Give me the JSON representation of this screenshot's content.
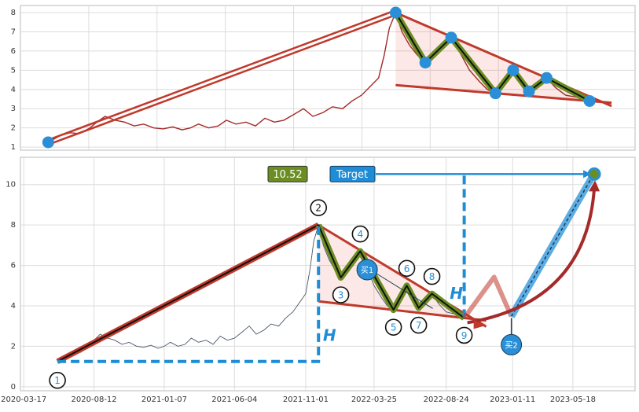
{
  "chart_data": [
    {
      "type": "line",
      "xlim": [
        "2020-04-13",
        "2022-12-12"
      ],
      "ylim": [
        0.84,
        8.37
      ],
      "yticks": [
        1,
        2,
        3,
        4,
        5,
        6,
        7,
        8
      ],
      "grid": true,
      "x": [
        "2020-05-27",
        "2020-06-15",
        "2020-07-01",
        "2020-07-15",
        "2020-08-01",
        "2020-08-12",
        "2020-08-25",
        "2020-09-10",
        "2020-09-25",
        "2020-10-10",
        "2020-10-25",
        "2020-11-10",
        "2020-11-25",
        "2020-12-10",
        "2020-12-25",
        "2021-01-07",
        "2021-01-20",
        "2021-02-05",
        "2021-02-20",
        "2021-03-05",
        "2021-03-20",
        "2021-04-05",
        "2021-04-20",
        "2021-05-05",
        "2021-05-20",
        "2021-06-04",
        "2021-06-20",
        "2021-07-05",
        "2021-07-20",
        "2021-08-05",
        "2021-08-20",
        "2021-09-05",
        "2021-09-20",
        "2021-10-05",
        "2021-10-20",
        "2021-11-01",
        "2021-11-10",
        "2021-11-18",
        "2021-11-28",
        "2021-12-08",
        "2021-12-20",
        "2022-01-01",
        "2022-01-14",
        "2022-01-28",
        "2022-02-10",
        "2022-02-24",
        "2022-03-10",
        "2022-03-25",
        "2022-04-10",
        "2022-04-22",
        "2022-05-05",
        "2022-05-20",
        "2022-06-02",
        "2022-06-15",
        "2022-06-27",
        "2022-07-12",
        "2022-07-25",
        "2022-08-08",
        "2022-08-24",
        "2022-09-10",
        "2022-10-01"
      ],
      "series": [
        {
          "color": "#a52a2a",
          "values": [
            1.25,
            1.6,
            1.75,
            1.7,
            2.0,
            2.3,
            2.6,
            2.4,
            2.3,
            2.1,
            2.2,
            2.0,
            1.95,
            2.05,
            1.9,
            2.0,
            2.2,
            2.0,
            2.1,
            2.4,
            2.2,
            2.3,
            2.1,
            2.5,
            2.3,
            2.4,
            2.7,
            3.0,
            2.6,
            2.8,
            3.1,
            3.0,
            3.4,
            3.7,
            4.2,
            4.6,
            5.8,
            7.2,
            8.0,
            7.0,
            6.3,
            5.8,
            5.4,
            5.9,
            6.2,
            6.7,
            5.9,
            5.0,
            4.4,
            4.0,
            3.8,
            4.4,
            5.0,
            4.4,
            3.9,
            4.2,
            4.6,
            4.1,
            3.7,
            3.6,
            3.4
          ]
        }
      ],
      "pivots": {
        "x": [
          "2020-05-27",
          "2021-11-28",
          "2022-01-14",
          "2022-02-24",
          "2022-05-05",
          "2022-06-02",
          "2022-06-27",
          "2022-07-25",
          "2022-10-01"
        ],
        "y": [
          1.25,
          8.0,
          5.4,
          6.7,
          3.8,
          5.0,
          3.9,
          4.6,
          3.4
        ]
      }
    },
    {
      "type": "line",
      "xlim": [
        "2020-03-10",
        "2023-09-26"
      ],
      "ylim": [
        -0.2,
        11.35
      ],
      "yticks": [
        0,
        2,
        4,
        6,
        8,
        10
      ],
      "grid": true,
      "xticks": [
        "2020-03-17",
        "2020-08-12",
        "2021-01-07",
        "2021-06-04",
        "2021-11-01",
        "2022-03-25",
        "2022-08-24",
        "2023-01-11",
        "2023-05-18"
      ],
      "x": [
        "2020-05-27",
        "2020-06-15",
        "2020-07-01",
        "2020-07-15",
        "2020-08-01",
        "2020-08-12",
        "2020-08-25",
        "2020-09-10",
        "2020-09-25",
        "2020-10-10",
        "2020-10-25",
        "2020-11-10",
        "2020-11-25",
        "2020-12-10",
        "2020-12-25",
        "2021-01-07",
        "2021-01-20",
        "2021-02-05",
        "2021-02-20",
        "2021-03-05",
        "2021-03-20",
        "2021-04-05",
        "2021-04-20",
        "2021-05-05",
        "2021-05-20",
        "2021-06-04",
        "2021-06-20",
        "2021-07-05",
        "2021-07-20",
        "2021-08-05",
        "2021-08-20",
        "2021-09-05",
        "2021-09-20",
        "2021-10-05",
        "2021-10-20",
        "2021-11-01",
        "2021-11-10",
        "2021-11-18",
        "2021-11-28",
        "2021-12-08",
        "2021-12-20",
        "2022-01-01",
        "2022-01-14",
        "2022-01-28",
        "2022-02-10",
        "2022-02-24",
        "2022-03-10",
        "2022-03-25",
        "2022-04-10",
        "2022-04-22",
        "2022-05-05",
        "2022-05-20",
        "2022-06-02",
        "2022-06-15",
        "2022-06-27",
        "2022-07-12",
        "2022-07-25",
        "2022-08-08",
        "2022-08-24",
        "2022-09-10",
        "2022-10-01"
      ],
      "series": [
        {
          "color": "#4a5568",
          "values": [
            1.25,
            1.6,
            1.75,
            1.7,
            2.0,
            2.3,
            2.6,
            2.4,
            2.3,
            2.1,
            2.2,
            2.0,
            1.95,
            2.05,
            1.9,
            2.0,
            2.2,
            2.0,
            2.1,
            2.4,
            2.2,
            2.3,
            2.1,
            2.5,
            2.3,
            2.4,
            2.7,
            3.0,
            2.6,
            2.8,
            3.1,
            3.0,
            3.4,
            3.7,
            4.2,
            4.6,
            5.8,
            7.2,
            8.0,
            7.0,
            6.3,
            5.8,
            5.4,
            5.9,
            6.2,
            6.7,
            5.9,
            5.0,
            4.4,
            4.0,
            3.8,
            4.4,
            5.0,
            4.4,
            3.9,
            4.2,
            4.6,
            4.1,
            3.7,
            3.6,
            3.4
          ]
        }
      ],
      "pivots": {
        "labels": [
          "1",
          "2",
          "3",
          "4",
          "5",
          "6",
          "7",
          "8",
          "9"
        ],
        "x": [
          "2020-05-27",
          "2021-11-28",
          "2022-01-14",
          "2022-02-24",
          "2022-05-05",
          "2022-06-02",
          "2022-06-27",
          "2022-07-25",
          "2022-10-01"
        ],
        "y": [
          1.25,
          8.0,
          5.4,
          6.7,
          3.8,
          5.0,
          3.9,
          4.6,
          3.4
        ]
      },
      "target": {
        "label": "Target",
        "x": "2023-07-02",
        "value": 10.52
      },
      "height_labels": [
        "H",
        "H"
      ],
      "buy_labels": [
        "买1",
        "买2"
      ]
    }
  ]
}
